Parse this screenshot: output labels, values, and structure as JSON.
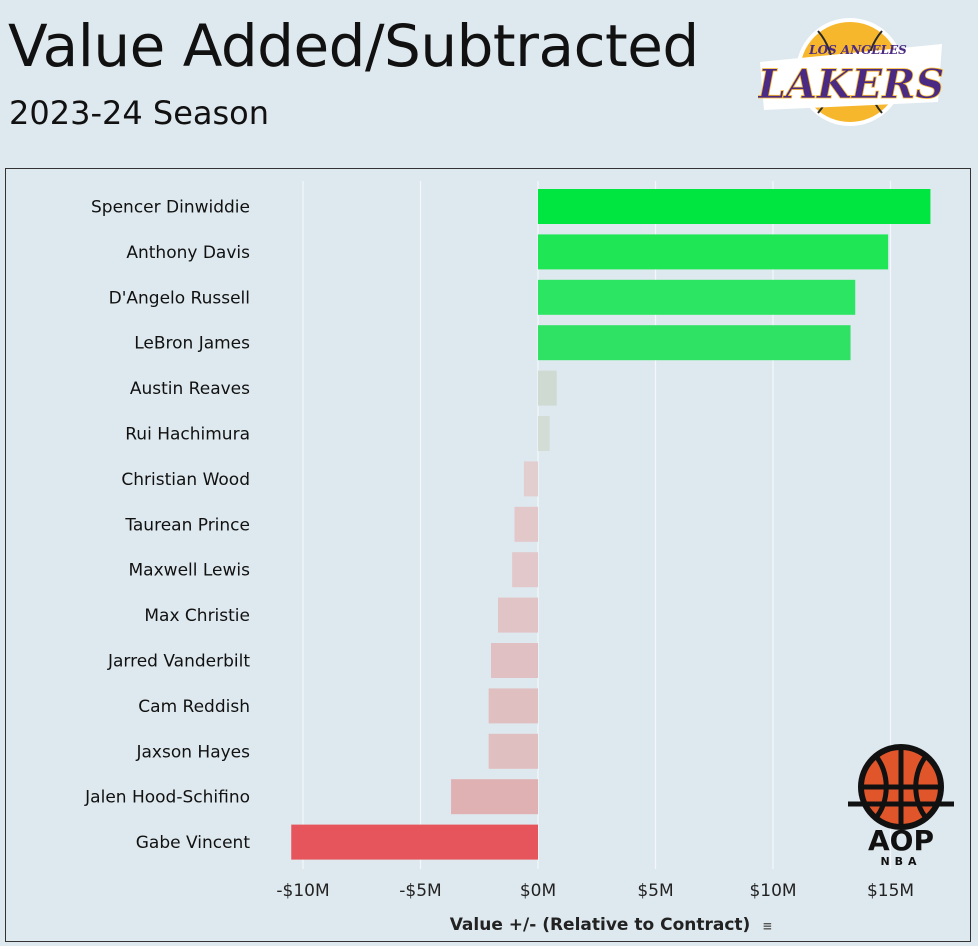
{
  "header": {
    "title": "Value Added/Subtracted",
    "subtitle": "2023-24 Season"
  },
  "team_logo": {
    "icon": "lakers-logo",
    "top_text": "LOS ANGELES",
    "wordmark": "LAKERS",
    "colors": {
      "gold": "#f7b72d",
      "purple": "#4b2a84"
    }
  },
  "brand_logo": {
    "icon": "aop-basketball-logo",
    "name": "AOP",
    "sub": "NBA",
    "colors": {
      "ball": "#e0562a",
      "ink": "#111111"
    }
  },
  "chart_data": {
    "type": "bar",
    "orientation": "horizontal",
    "categories": [
      "Spencer Dinwiddie",
      "Anthony Davis",
      "D'Angelo Russell",
      "LeBron James",
      "Austin Reaves",
      "Rui Hachimura",
      "Christian Wood",
      "Taurean Prince",
      "Maxwell Lewis",
      "Max Christie",
      "Jarred Vanderbilt",
      "Cam Reddish",
      "Jaxson Hayes",
      "Jalen Hood-Schifino",
      "Gabe Vincent"
    ],
    "values": [
      16.7,
      14.9,
      13.5,
      13.3,
      0.8,
      0.5,
      -0.6,
      -1.0,
      -1.1,
      -1.7,
      -2.0,
      -2.1,
      -2.1,
      -3.7,
      -10.5
    ],
    "colors": [
      "#00e640",
      "#1ee655",
      "#2ce562",
      "#2fe264",
      "#cfdbd2",
      "#d3ddd5",
      "#e2cdcf",
      "#e3c8ca",
      "#e2c8ca",
      "#e1c4c6",
      "#e0c0c2",
      "#e0bfc1",
      "#e0bfc1",
      "#e0b1b3",
      "#e5555b"
    ],
    "xlabel": "Value +/- (Relative to Contract)",
    "ylabel": "",
    "xlim": [
      -12,
      18
    ],
    "ticks": [
      -10,
      -5,
      0,
      5,
      10,
      15
    ],
    "tick_labels": [
      "-$10M",
      "-$5M",
      "$0M",
      "$5M",
      "$10M",
      "$15M"
    ],
    "grid": true,
    "legend": "none"
  }
}
